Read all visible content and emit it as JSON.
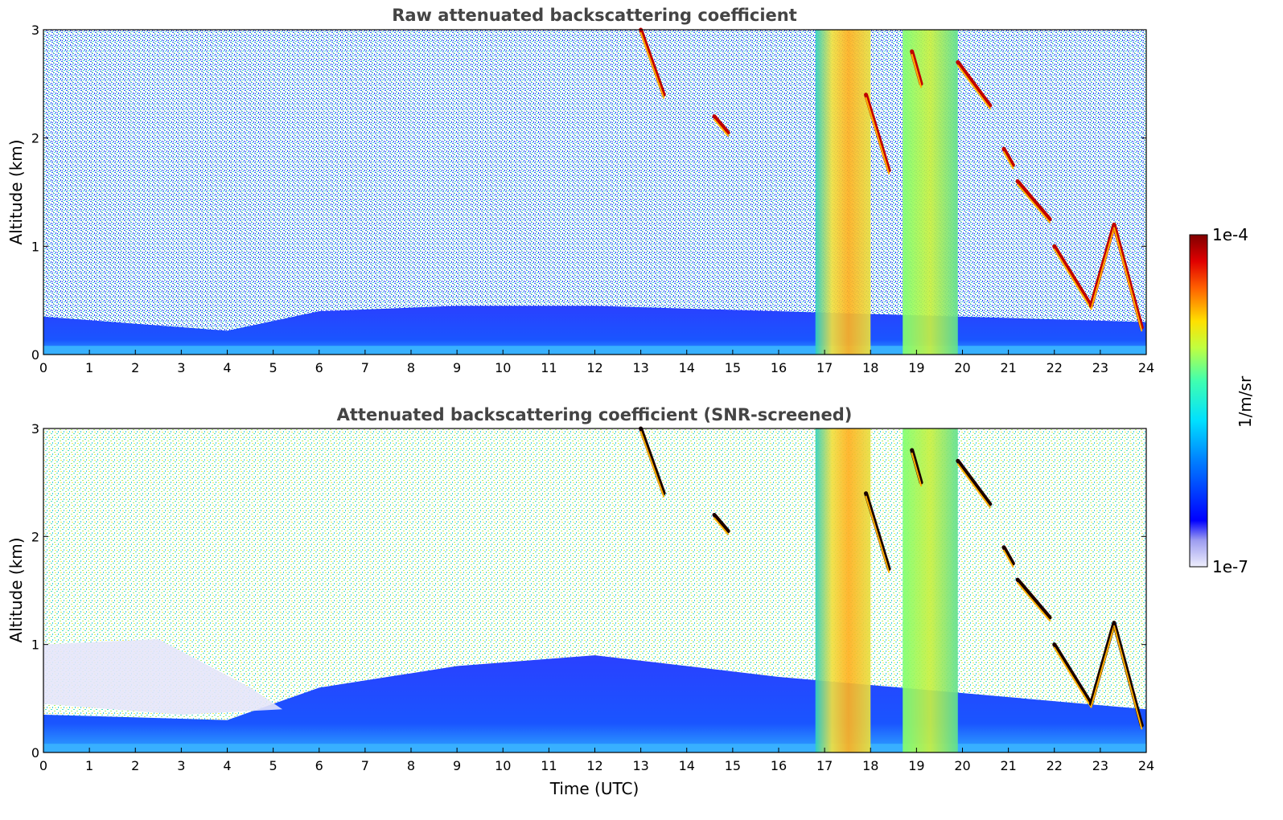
{
  "chart_data": [
    {
      "type": "heatmap",
      "title": "Raw attenuated backscattering coefficient",
      "xlabel": "",
      "ylabel": "Altitude (km)",
      "xlim": [
        0,
        24
      ],
      "ylim": [
        0,
        3
      ],
      "xticks": [
        "0",
        "1",
        "2",
        "3",
        "4",
        "5",
        "6",
        "7",
        "8",
        "9",
        "10",
        "11",
        "12",
        "13",
        "14",
        "15",
        "16",
        "17",
        "18",
        "19",
        "20",
        "21",
        "22",
        "23",
        "24"
      ],
      "yticks": [
        "0",
        "1",
        "2",
        "3"
      ],
      "screened": false,
      "features": {
        "boundary_layer_top_km": [
          [
            0,
            0.35
          ],
          [
            4,
            0.22
          ],
          [
            6,
            0.4
          ],
          [
            9,
            0.45
          ],
          [
            12,
            0.45
          ],
          [
            16,
            0.4
          ],
          [
            24,
            0.3
          ]
        ],
        "precipitation_hours": [
          [
            16.8,
            18.0
          ],
          [
            18.7,
            19.9
          ]
        ],
        "cloud_segments": [
          {
            "x": [
              13.0,
              13.5
            ],
            "y": [
              3.0,
              2.4
            ]
          },
          {
            "x": [
              14.6,
              14.9
            ],
            "y": [
              2.2,
              2.05
            ]
          },
          {
            "x": [
              17.9,
              18.4
            ],
            "y": [
              2.4,
              1.7
            ]
          },
          {
            "x": [
              18.9,
              19.1
            ],
            "y": [
              2.8,
              2.5
            ]
          },
          {
            "x": [
              19.9,
              20.6
            ],
            "y": [
              2.7,
              2.3
            ]
          },
          {
            "x": [
              20.9,
              21.1
            ],
            "y": [
              1.9,
              1.75
            ]
          },
          {
            "x": [
              21.2,
              21.9
            ],
            "y": [
              1.6,
              1.25
            ]
          },
          {
            "x": [
              22.0,
              22.8
            ],
            "y": [
              1.0,
              0.45
            ]
          },
          {
            "x": [
              22.8,
              23.3
            ],
            "y": [
              0.45,
              1.2
            ]
          },
          {
            "x": [
              23.3,
              23.9
            ],
            "y": [
              1.2,
              0.25
            ]
          }
        ]
      }
    },
    {
      "type": "heatmap",
      "title": "Attenuated backscattering coefficient (SNR-screened)",
      "xlabel": "Time (UTC)",
      "ylabel": "Altitude (km)",
      "xlim": [
        0,
        24
      ],
      "ylim": [
        0,
        3
      ],
      "xticks": [
        "0",
        "1",
        "2",
        "3",
        "4",
        "5",
        "6",
        "7",
        "8",
        "9",
        "10",
        "11",
        "12",
        "13",
        "14",
        "15",
        "16",
        "17",
        "18",
        "19",
        "20",
        "21",
        "22",
        "23",
        "24"
      ],
      "yticks": [
        "0",
        "1",
        "2",
        "3"
      ],
      "screened": true,
      "features": {
        "boundary_layer_top_km": [
          [
            0,
            0.35
          ],
          [
            4,
            0.3
          ],
          [
            6,
            0.6
          ],
          [
            9,
            0.8
          ],
          [
            12,
            0.9
          ],
          [
            16,
            0.7
          ],
          [
            24,
            0.4
          ]
        ],
        "precipitation_hours": [
          [
            16.8,
            18.0
          ],
          [
            18.7,
            19.9
          ]
        ],
        "cloud_segments": [
          {
            "x": [
              13.0,
              13.5
            ],
            "y": [
              3.0,
              2.4
            ]
          },
          {
            "x": [
              14.6,
              14.9
            ],
            "y": [
              2.2,
              2.05
            ]
          },
          {
            "x": [
              17.9,
              18.4
            ],
            "y": [
              2.4,
              1.7
            ]
          },
          {
            "x": [
              18.9,
              19.1
            ],
            "y": [
              2.8,
              2.5
            ]
          },
          {
            "x": [
              19.9,
              20.6
            ],
            "y": [
              2.7,
              2.3
            ]
          },
          {
            "x": [
              20.9,
              21.1
            ],
            "y": [
              1.9,
              1.75
            ]
          },
          {
            "x": [
              21.2,
              21.9
            ],
            "y": [
              1.6,
              1.25
            ]
          },
          {
            "x": [
              22.0,
              22.8
            ],
            "y": [
              1.0,
              0.45
            ]
          },
          {
            "x": [
              22.8,
              23.3
            ],
            "y": [
              0.45,
              1.2
            ]
          },
          {
            "x": [
              23.3,
              23.9
            ],
            "y": [
              1.2,
              0.25
            ]
          }
        ]
      }
    }
  ],
  "colorbar": {
    "label": "1/m/sr",
    "max_label": "1e-4",
    "min_label": "1e-7",
    "colormap": "jet",
    "scale": "log"
  }
}
